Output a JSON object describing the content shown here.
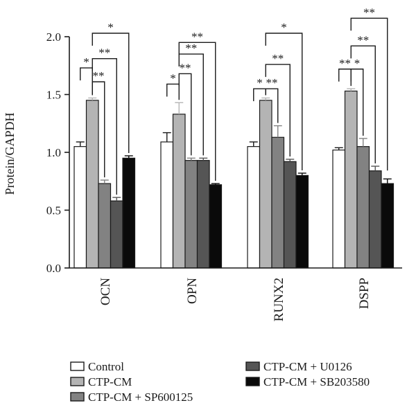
{
  "chart_data": {
    "type": "bar",
    "title": "",
    "xlabel": "",
    "ylabel": "Protein/GAPDH",
    "ylim": [
      0,
      2.0
    ],
    "yticks": [
      "0.0",
      "0.5",
      "1.0",
      "1.5",
      "2.0"
    ],
    "grid": false,
    "legend_position": "bottom",
    "categories": [
      "OCN",
      "OPN",
      "RUNX2",
      "DSPP"
    ],
    "series": [
      {
        "name": "Control",
        "color": "#ffffff",
        "values": [
          1.05,
          1.09,
          1.05,
          1.02
        ],
        "errors": [
          0.04,
          0.08,
          0.04,
          0.02
        ]
      },
      {
        "name": "CTP-CM",
        "color": "#b4b4b4",
        "values": [
          1.45,
          1.33,
          1.45,
          1.53
        ],
        "errors": [
          0.02,
          0.1,
          0.02,
          0.02
        ]
      },
      {
        "name": "CTP-CM + SP600125",
        "color": "#828282",
        "values": [
          0.73,
          0.93,
          1.13,
          1.05
        ],
        "errors": [
          0.03,
          0.02,
          0.1,
          0.07
        ]
      },
      {
        "name": "CTP-CM + U0126",
        "color": "#555555",
        "values": [
          0.58,
          0.93,
          0.92,
          0.84
        ],
        "errors": [
          0.03,
          0.02,
          0.02,
          0.04
        ]
      },
      {
        "name": "CTP-CM + SB203580",
        "color": "#0a0a0a",
        "values": [
          0.95,
          0.72,
          0.8,
          0.73
        ],
        "errors": [
          0.02,
          0.01,
          0.02,
          0.04
        ]
      }
    ],
    "significance": [
      {
        "category": 0,
        "from": 0,
        "to": 1,
        "label": "*",
        "level": 1.73
      },
      {
        "category": 0,
        "from": 1,
        "to": 2,
        "label": "**",
        "level": 1.61
      },
      {
        "category": 0,
        "from": 1,
        "to": 3,
        "label": "**",
        "level": 1.81
      },
      {
        "category": 0,
        "from": 1,
        "to": 4,
        "label": "*",
        "level": 2.03
      },
      {
        "category": 1,
        "from": 0,
        "to": 1,
        "label": "*",
        "level": 1.59
      },
      {
        "category": 1,
        "from": 1,
        "to": 2,
        "label": "**",
        "level": 1.68
      },
      {
        "category": 1,
        "from": 1,
        "to": 3,
        "label": "**",
        "level": 1.85
      },
      {
        "category": 1,
        "from": 1,
        "to": 4,
        "label": "**",
        "level": 1.95
      },
      {
        "category": 2,
        "from": 0,
        "to": 1,
        "label": "*",
        "level": 1.55
      },
      {
        "category": 2,
        "from": 1,
        "to": 2,
        "label": "**",
        "level": 1.55
      },
      {
        "category": 2,
        "from": 1,
        "to": 3,
        "label": "**",
        "level": 1.76
      },
      {
        "category": 2,
        "from": 1,
        "to": 4,
        "label": "*",
        "level": 2.03
      },
      {
        "category": 3,
        "from": 0,
        "to": 1,
        "label": "**",
        "level": 1.72
      },
      {
        "category": 3,
        "from": 1,
        "to": 2,
        "label": "*",
        "level": 1.72
      },
      {
        "category": 3,
        "from": 1,
        "to": 3,
        "label": "**",
        "level": 1.92
      },
      {
        "category": 3,
        "from": 1,
        "to": 4,
        "label": "**",
        "level": 2.16
      }
    ]
  },
  "legend": {
    "items": [
      {
        "label": "Control",
        "color": "#ffffff"
      },
      {
        "label": "CTP-CM",
        "color": "#b4b4b4"
      },
      {
        "label": "CTP-CM + SP600125",
        "color": "#828282"
      },
      {
        "label": "CTP-CM + U0126",
        "color": "#555555"
      },
      {
        "label": "CTP-CM + SB203580",
        "color": "#0a0a0a"
      }
    ]
  }
}
